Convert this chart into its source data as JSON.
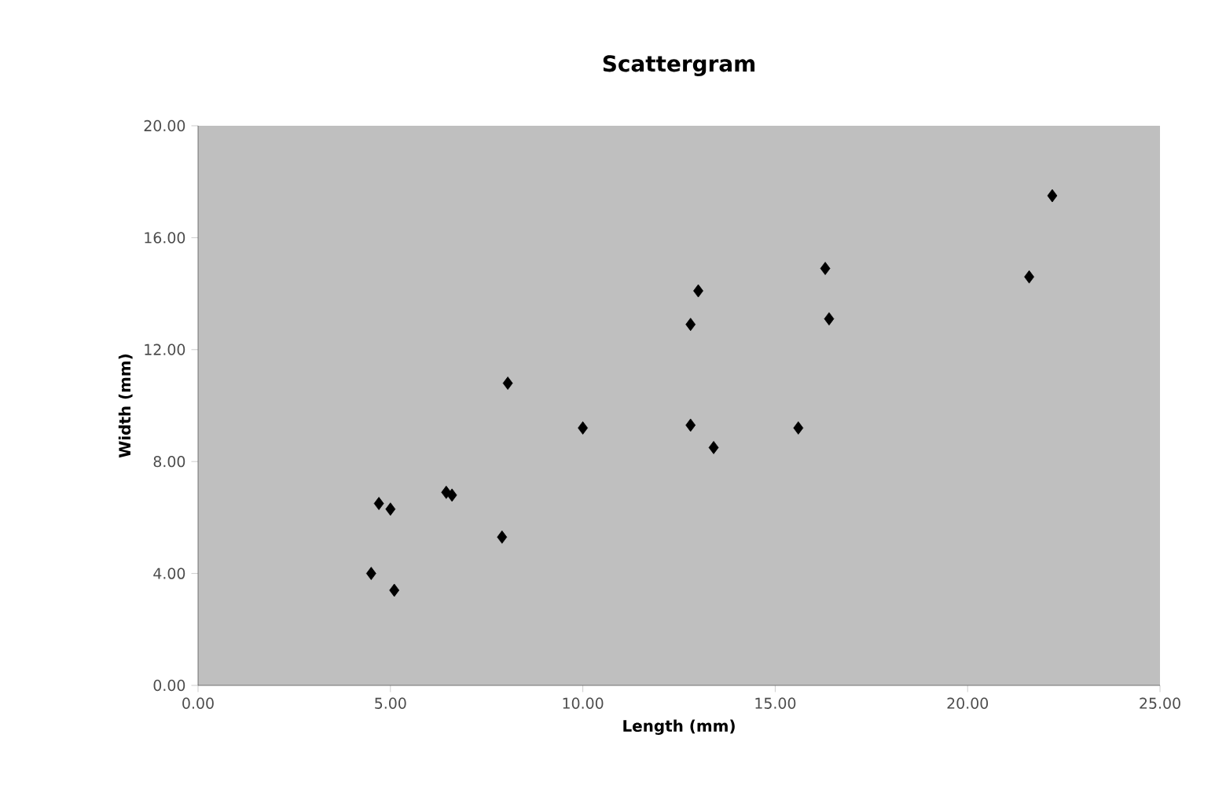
{
  "chart_data": {
    "type": "scatter",
    "title": "Scattergram",
    "xlabel": "Length (mm)",
    "ylabel": "Width (mm)",
    "x": [
      4.5,
      5.1,
      4.7,
      5.0,
      6.45,
      6.6,
      7.9,
      8.05,
      10.0,
      12.8,
      13.4,
      15.6,
      12.8,
      13.0,
      16.3,
      16.4,
      21.6,
      22.2
    ],
    "series": [
      {
        "color": "#000000",
        "values": [
          4.0,
          3.4,
          6.5,
          6.3,
          6.9,
          6.8,
          5.3,
          10.8,
          9.2,
          9.3,
          8.5,
          9.2,
          12.9,
          14.1,
          14.9,
          13.1,
          14.6,
          17.5
        ]
      }
    ],
    "xlim": [
      0,
      25
    ],
    "xticks": [
      {
        "value": 0,
        "label": "0.00"
      },
      {
        "value": 5,
        "label": "5.00"
      },
      {
        "value": 10,
        "label": "10.00"
      },
      {
        "value": 15,
        "label": "15.00"
      },
      {
        "value": 20,
        "label": "20.00"
      },
      {
        "value": 25,
        "label": "25.00"
      }
    ],
    "ylim": [
      0,
      20
    ],
    "yticks": [
      {
        "value": 0,
        "label": "0.00"
      },
      {
        "value": 4,
        "label": "4.00"
      },
      {
        "value": 8,
        "label": "8.00"
      },
      {
        "value": 12,
        "label": "12.00"
      },
      {
        "value": 16,
        "label": "16.00"
      },
      {
        "value": 20,
        "label": "20.00"
      }
    ],
    "marker": "diamond",
    "grid": false
  }
}
